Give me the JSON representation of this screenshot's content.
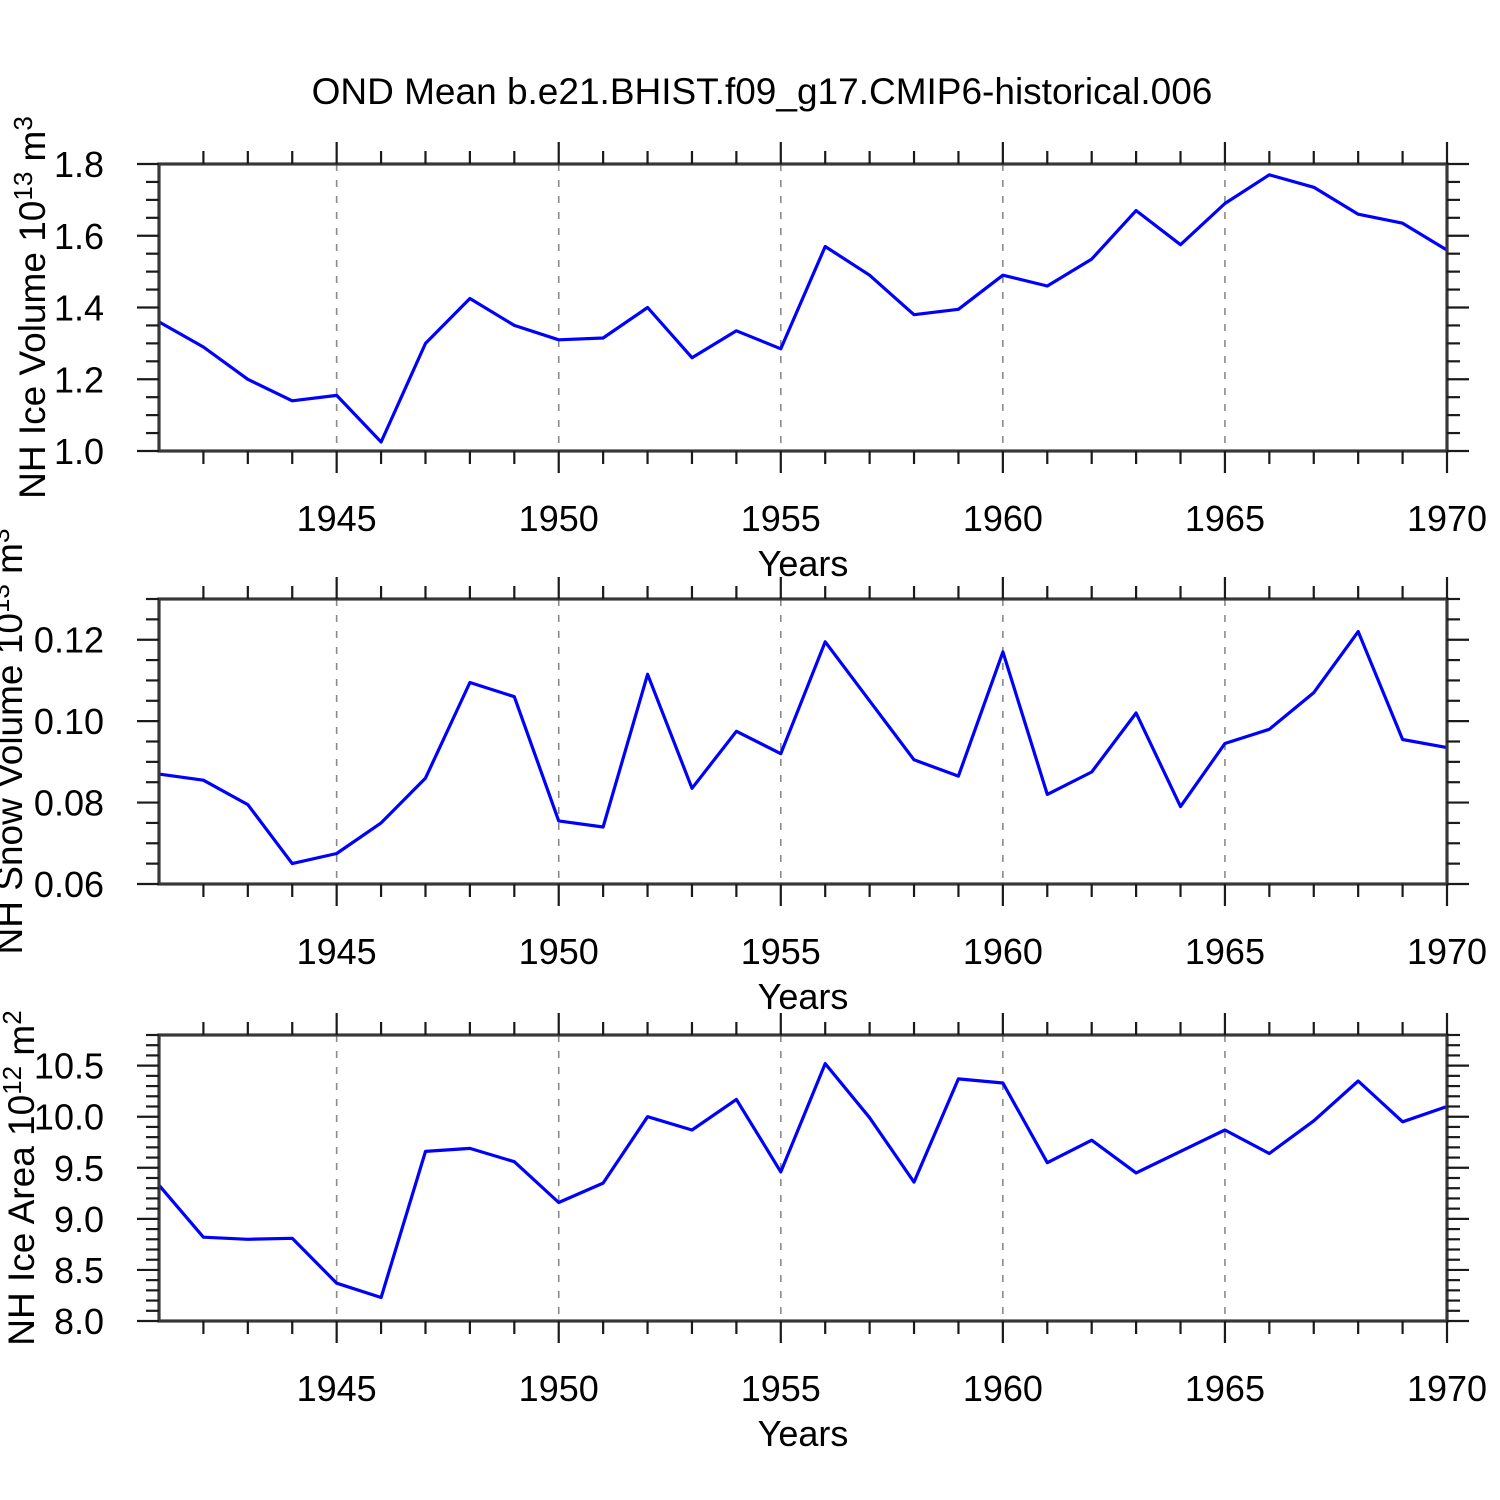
{
  "title": "OND Mean b.e21.BHIST.f09_g17.CMIP6-historical.006",
  "colors": {
    "line": "#0000ff",
    "frame": "#383838",
    "tick": "#1a1a1a",
    "grid": "#8a8a8a",
    "text": "#000000"
  },
  "x_axis": {
    "label": "Years",
    "start": 1941,
    "end": 1970,
    "major_ticks": [
      {
        "v": 1945,
        "label": "1945"
      },
      {
        "v": 1950,
        "label": "1950"
      },
      {
        "v": 1955,
        "label": "1955"
      },
      {
        "v": 1960,
        "label": "1960"
      },
      {
        "v": 1965,
        "label": "1965"
      },
      {
        "v": 1970,
        "label": "1970"
      }
    ],
    "gridlines": [
      1945,
      1950,
      1955,
      1960,
      1965
    ]
  },
  "chart_data": [
    {
      "type": "line",
      "name": "nh-ice-volume",
      "ylabel_parts": [
        {
          "t": "NH Ice Volume 10"
        },
        {
          "t": "13",
          "sup": true
        },
        {
          "t": " m"
        },
        {
          "t": "3",
          "sup": true
        }
      ],
      "ylim": [
        1.0,
        1.8
      ],
      "yticks": [
        {
          "v": 1.0,
          "label": "1.0"
        },
        {
          "v": 1.2,
          "label": "1.2"
        },
        {
          "v": 1.4,
          "label": "1.4"
        },
        {
          "v": 1.6,
          "label": "1.6"
        },
        {
          "v": 1.8,
          "label": "1.8"
        }
      ],
      "minor_step": 0.05,
      "x": [
        1941,
        1942,
        1943,
        1944,
        1945,
        1946,
        1947,
        1948,
        1949,
        1950,
        1951,
        1952,
        1953,
        1954,
        1955,
        1956,
        1957,
        1958,
        1959,
        1960,
        1961,
        1962,
        1963,
        1964,
        1965,
        1966,
        1967,
        1968,
        1969,
        1970
      ],
      "values": [
        1.36,
        1.29,
        1.2,
        1.14,
        1.155,
        1.025,
        1.3,
        1.425,
        1.35,
        1.31,
        1.315,
        1.4,
        1.26,
        1.335,
        1.285,
        1.57,
        1.49,
        1.38,
        1.395,
        1.49,
        1.46,
        1.535,
        1.67,
        1.575,
        1.69,
        1.77,
        1.735,
        1.66,
        1.635,
        1.56
      ]
    },
    {
      "type": "line",
      "name": "nh-snow-volume",
      "ylabel_parts": [
        {
          "t": "NH Snow Volume 10"
        },
        {
          "t": "13",
          "sup": true
        },
        {
          "t": " m"
        },
        {
          "t": "3",
          "sup": true
        }
      ],
      "ylim": [
        0.06,
        0.13
      ],
      "yticks": [
        {
          "v": 0.06,
          "label": "0.06"
        },
        {
          "v": 0.08,
          "label": "0.08"
        },
        {
          "v": 0.1,
          "label": "0.10"
        },
        {
          "v": 0.12,
          "label": "0.12"
        }
      ],
      "minor_step": 0.005,
      "x": [
        1941,
        1942,
        1943,
        1944,
        1945,
        1946,
        1947,
        1948,
        1949,
        1950,
        1951,
        1952,
        1953,
        1954,
        1955,
        1956,
        1957,
        1958,
        1959,
        1960,
        1961,
        1962,
        1963,
        1964,
        1965,
        1966,
        1967,
        1968,
        1969,
        1970
      ],
      "values": [
        0.087,
        0.0855,
        0.0795,
        0.065,
        0.0675,
        0.075,
        0.086,
        0.1095,
        0.106,
        0.0755,
        0.074,
        0.1115,
        0.0835,
        0.0975,
        0.092,
        0.1195,
        0.105,
        0.0905,
        0.0865,
        0.117,
        0.082,
        0.0875,
        0.102,
        0.079,
        0.0945,
        0.098,
        0.107,
        0.122,
        0.0955,
        0.0935
      ]
    },
    {
      "type": "line",
      "name": "nh-ice-area",
      "ylabel_parts": [
        {
          "t": "NH Ice Area 10"
        },
        {
          "t": "12",
          "sup": true
        },
        {
          "t": " m"
        },
        {
          "t": "2",
          "sup": true
        }
      ],
      "ylim": [
        8.0,
        10.8
      ],
      "yticks": [
        {
          "v": 8.0,
          "label": "8.0"
        },
        {
          "v": 8.5,
          "label": "8.5"
        },
        {
          "v": 9.0,
          "label": "9.0"
        },
        {
          "v": 9.5,
          "label": "9.5"
        },
        {
          "v": 10.0,
          "label": "10.0"
        },
        {
          "v": 10.5,
          "label": "10.5"
        }
      ],
      "minor_step": 0.1,
      "x": [
        1941,
        1942,
        1943,
        1944,
        1945,
        1946,
        1947,
        1948,
        1949,
        1950,
        1951,
        1952,
        1953,
        1954,
        1955,
        1956,
        1957,
        1958,
        1959,
        1960,
        1961,
        1962,
        1963,
        1964,
        1965,
        1966,
        1967,
        1968,
        1969,
        1970
      ],
      "values": [
        9.33,
        8.82,
        8.8,
        8.81,
        8.37,
        8.23,
        9.66,
        9.69,
        9.56,
        9.16,
        9.35,
        10.0,
        9.87,
        10.17,
        9.46,
        10.52,
        9.99,
        9.36,
        10.37,
        10.33,
        9.55,
        9.77,
        9.45,
        9.66,
        9.87,
        9.64,
        9.96,
        10.35,
        9.95,
        10.1
      ]
    }
  ]
}
